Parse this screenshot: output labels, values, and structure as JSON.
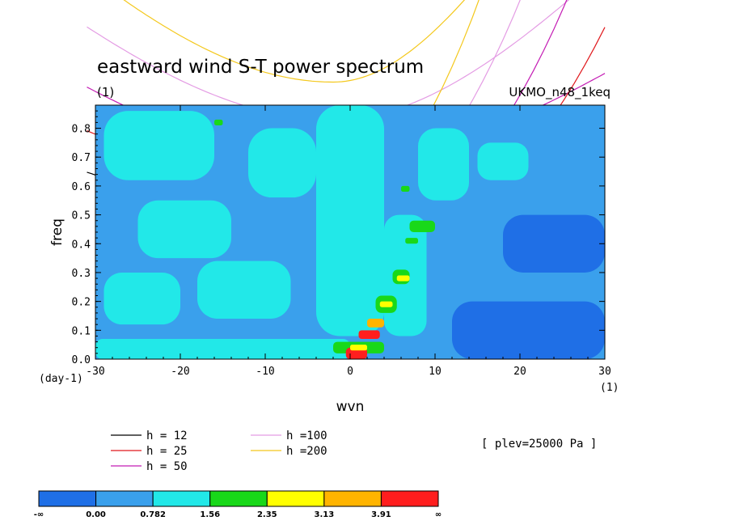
{
  "chart_data": {
    "type": "heatmap",
    "title": "eastward wind S-T power spectrum",
    "subtitle_left": "(1)",
    "subtitle_right": "UKMO_n48_1keq",
    "xlabel": "wvn",
    "ylabel": "freq",
    "x_unit": "(1)",
    "y_unit": "(day-1)",
    "xlim": [
      -30,
      30
    ],
    "ylim": [
      0,
      0.88
    ],
    "xticks": [
      "-30",
      "-20",
      "-10",
      "0",
      "10",
      "20",
      "30"
    ],
    "xtick_values": [
      -30,
      -20,
      -10,
      0,
      10,
      20,
      30
    ],
    "yticks": [
      "0.0",
      "0.1",
      "0.2",
      "0.3",
      "0.4",
      "0.5",
      "0.6",
      "0.7",
      "0.8"
    ],
    "ytick_values": [
      0,
      0.1,
      0.2,
      0.3,
      0.4,
      0.5,
      0.6,
      0.7,
      0.8
    ],
    "annotation": "[ plev=25000 Pa ]",
    "colorbar": {
      "labels": [
        "-∞",
        "0.00",
        "0.782",
        "1.56",
        "2.35",
        "3.13",
        "3.91",
        "∞"
      ],
      "colors": [
        "#1f6fe6",
        "#3aa0ec",
        "#22e8e8",
        "#19d819",
        "#ffff00",
        "#ffb400",
        "#ff1e1e"
      ]
    },
    "base_color": "#3aa0ec",
    "cells": [
      {
        "x": [
          -29,
          -16
        ],
        "y": [
          0.62,
          0.86
        ],
        "level": 2
      },
      {
        "x": [
          -25,
          -14
        ],
        "y": [
          0.35,
          0.55
        ],
        "level": 2
      },
      {
        "x": [
          -29,
          -20
        ],
        "y": [
          0.12,
          0.3
        ],
        "level": 2
      },
      {
        "x": [
          -18,
          -7
        ],
        "y": [
          0.14,
          0.34
        ],
        "level": 2
      },
      {
        "x": [
          -12,
          -4
        ],
        "y": [
          0.56,
          0.8
        ],
        "level": 2
      },
      {
        "x": [
          -4,
          4
        ],
        "y": [
          0.08,
          0.88
        ],
        "level": 2
      },
      {
        "x": [
          4,
          9
        ],
        "y": [
          0.08,
          0.5
        ],
        "level": 2
      },
      {
        "x": [
          8,
          14
        ],
        "y": [
          0.55,
          0.8
        ],
        "level": 2
      },
      {
        "x": [
          15,
          21
        ],
        "y": [
          0.62,
          0.75
        ],
        "level": 2
      },
      {
        "x": [
          -30,
          0
        ],
        "y": [
          0.0,
          0.07
        ],
        "level": 2
      },
      {
        "x": [
          12,
          30
        ],
        "y": [
          0.0,
          0.2
        ],
        "level": 0
      },
      {
        "x": [
          18,
          30
        ],
        "y": [
          0.3,
          0.5
        ],
        "level": 0
      },
      {
        "x": [
          -2,
          4
        ],
        "y": [
          0.02,
          0.06
        ],
        "level": 3
      },
      {
        "x": [
          -0.5,
          2
        ],
        "y": [
          0.0,
          0.04
        ],
        "level": 6
      },
      {
        "x": [
          1,
          3.5
        ],
        "y": [
          0.07,
          0.1
        ],
        "level": 6
      },
      {
        "x": [
          0,
          2
        ],
        "y": [
          0.03,
          0.05
        ],
        "level": 4
      },
      {
        "x": [
          2,
          4
        ],
        "y": [
          0.11,
          0.14
        ],
        "level": 5
      },
      {
        "x": [
          3,
          5.5
        ],
        "y": [
          0.16,
          0.22
        ],
        "level": 3
      },
      {
        "x": [
          3.5,
          5
        ],
        "y": [
          0.18,
          0.2
        ],
        "level": 4
      },
      {
        "x": [
          5,
          7
        ],
        "y": [
          0.26,
          0.31
        ],
        "level": 3
      },
      {
        "x": [
          5.5,
          7
        ],
        "y": [
          0.27,
          0.29
        ],
        "level": 4
      },
      {
        "x": [
          7,
          10
        ],
        "y": [
          0.44,
          0.48
        ],
        "level": 3
      },
      {
        "x": [
          6.5,
          8
        ],
        "y": [
          0.4,
          0.42
        ],
        "level": 3
      },
      {
        "x": [
          -16,
          -15
        ],
        "y": [
          0.81,
          0.83
        ],
        "level": 3
      },
      {
        "x": [
          6,
          7
        ],
        "y": [
          0.58,
          0.6
        ],
        "level": 3
      }
    ],
    "dispersion_curves": {
      "x_range": [
        -31,
        30
      ],
      "x_shift": -2,
      "series": [
        {
          "name": "h = 12",
          "color": "#000000",
          "freq_min": 0.48,
          "asymptote": [
            [
              -30,
              0.06
            ],
            [
              30,
              0.88
            ]
          ]
        },
        {
          "name": "h = 25",
          "color": "#e0181c",
          "freq_min": 0.58,
          "asymptote": [
            [
              -30,
              0.06
            ],
            [
              30,
              1.1
            ]
          ]
        },
        {
          "name": "h = 50",
          "color": "#c41cb4",
          "freq_min": 0.685,
          "asymptote": [
            [
              -30,
              0.06
            ],
            [
              30,
              1.4
            ]
          ]
        },
        {
          "name": "h =100",
          "color": "#e49ce4",
          "freq_min": 0.83,
          "asymptote": [
            [
              -30,
              0.06
            ],
            [
              30,
              1.9
            ]
          ]
        },
        {
          "name": "h =200",
          "color": "#f4c81c",
          "freq_min": 0.96,
          "asymptote": [
            [
              -30,
              0.06
            ],
            [
              30,
              2.6
            ]
          ]
        }
      ],
      "kelvin_lines": [
        {
          "color": "#000000",
          "points": [
            [
              -30,
              0.055
            ],
            [
              0,
              0.2
            ],
            [
              30,
              0.76
            ]
          ]
        },
        {
          "color": "#e0181c",
          "points": [
            [
              -30,
              0.056
            ],
            [
              0,
              0.25
            ],
            [
              30,
              1.15
            ]
          ]
        },
        {
          "color": "#c41cb4",
          "points": [
            [
              -30,
              0.057
            ],
            [
              0,
              0.3
            ],
            [
              30,
              1.6
            ]
          ]
        },
        {
          "color": "#e49ce4",
          "points": [
            [
              -30,
              0.058
            ],
            [
              0,
              0.38
            ],
            [
              30,
              2.2
            ]
          ]
        },
        {
          "color": "#f4c81c",
          "points": [
            [
              -30,
              0.059
            ],
            [
              0,
              0.46
            ],
            [
              30,
              3.2
            ]
          ]
        }
      ]
    }
  }
}
